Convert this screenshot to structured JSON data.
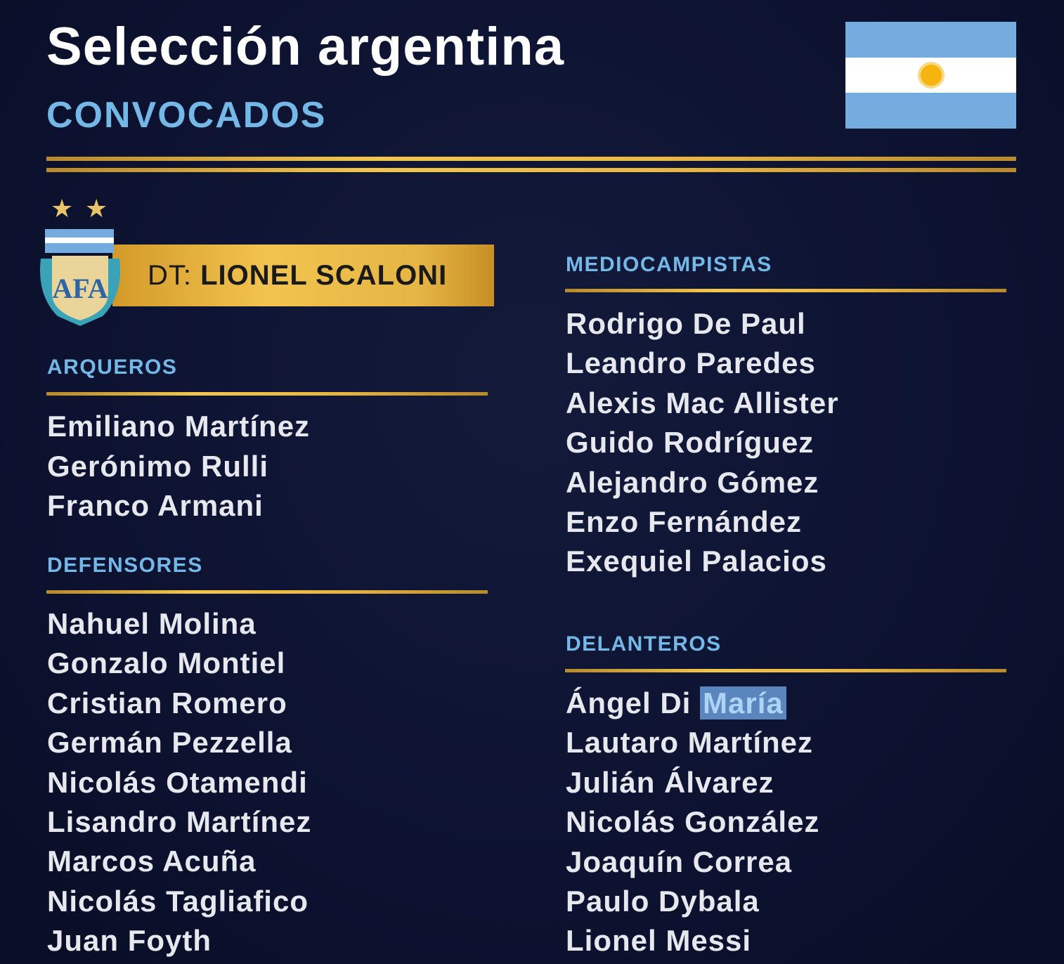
{
  "header": {
    "title": "Selección argentina",
    "subtitle": "CONVOCADOS"
  },
  "flag": {
    "colors": {
      "sky": "#74acdf",
      "white": "#ffffff",
      "sun": "#f6b40e"
    }
  },
  "badge": {
    "crest_text": "AFA",
    "stars": 2
  },
  "coach": {
    "prefix": "DT:",
    "name": "LIONEL SCALONI"
  },
  "sections": [
    {
      "heading": "ARQUEROS",
      "players": [
        "Emiliano Martínez",
        "Gerónimo Rulli",
        "Franco Armani"
      ]
    },
    {
      "heading": "DEFENSORES",
      "players": [
        "Nahuel Molina",
        "Gonzalo Montiel",
        "Cristian Romero",
        "Germán Pezzella",
        "Nicolás Otamendi",
        "Lisandro Martínez",
        "Marcos Acuña",
        "Nicolás Tagliafico",
        "Juan Foyth"
      ]
    },
    {
      "heading": "MEDIOCAMPISTAS",
      "players": [
        "Rodrigo De Paul",
        "Leandro Paredes",
        "Alexis Mac Allister",
        "Guido Rodríguez",
        "Alejandro Gómez",
        "Enzo Fernández",
        "Exequiel Palacios"
      ]
    },
    {
      "heading": "DELANTEROS",
      "players": [
        "Ángel Di María",
        "Lautaro Martínez",
        "Julián Álvarez",
        "Nicolás González",
        "Joaquín Correa",
        "Paulo Dybala",
        "Lionel Messi"
      ]
    }
  ],
  "selection": {
    "player": "Ángel Di María",
    "highlighted_text": "María",
    "color": "#5b86bd"
  },
  "colors": {
    "background": "#0c1230",
    "accent": "#74b8e8",
    "gold": "#f2c34e"
  }
}
